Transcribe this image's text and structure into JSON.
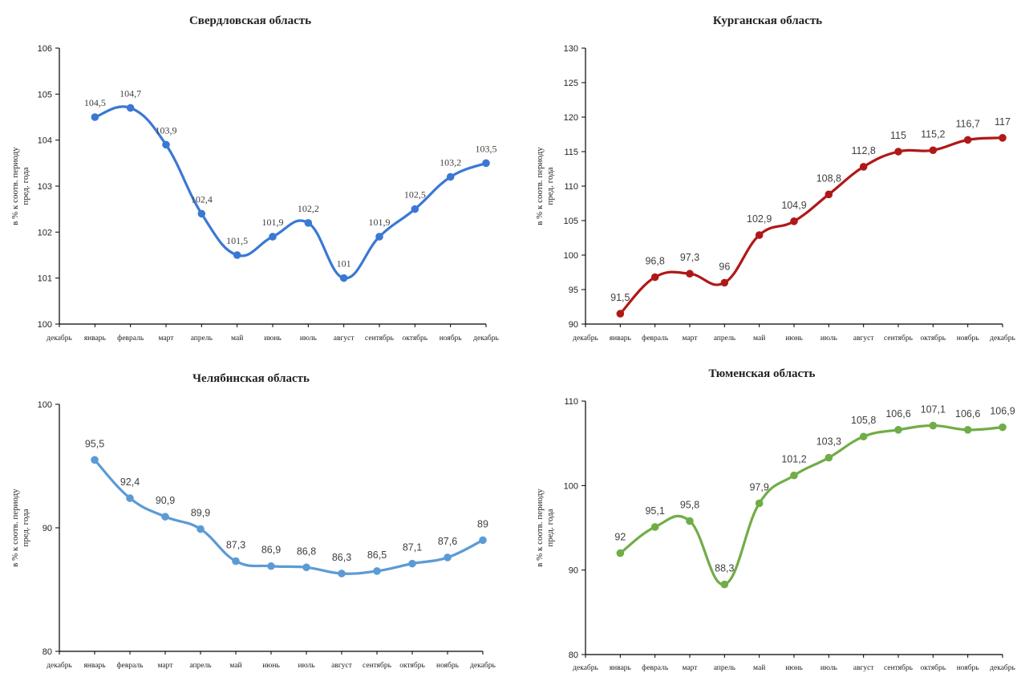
{
  "chart_data": [
    {
      "type": "line",
      "title": "Свердловская область",
      "ylabel": "в % к соотв. периоду\nпред. года",
      "categories": [
        "декабрь",
        "январь",
        "февраль",
        "март",
        "апрель",
        "май",
        "июнь",
        "июль",
        "август",
        "сентябрь",
        "октябрь",
        "ноябрь",
        "декабрь"
      ],
      "y_ticks": [
        "100",
        "101",
        "102",
        "103",
        "104",
        "105",
        "106"
      ],
      "ylim": [
        100,
        106
      ],
      "series": [
        {
          "values": [
            null,
            104.5,
            104.7,
            103.9,
            102.4,
            101.5,
            101.9,
            102.2,
            101.0,
            101.9,
            102.5,
            103.2,
            103.5
          ],
          "labels": [
            "",
            "104,5",
            "104,7",
            "103,9",
            "102,4",
            "101,5",
            "101,9",
            "102,2",
            "101",
            "101,9",
            "102,5",
            "103,2",
            "103,5"
          ],
          "color": "#3a78d4"
        }
      ]
    },
    {
      "type": "line",
      "title": "Курганская область",
      "ylabel": "в % к соотв. периоду\nпред. года",
      "categories": [
        "декабрь",
        "январь",
        "февраль",
        "март",
        "апрель",
        "май",
        "июнь",
        "июль",
        "август",
        "сентябрь",
        "октябрь",
        "ноябрь",
        "декабрь"
      ],
      "y_ticks": [
        "90",
        "95",
        "100",
        "105",
        "110",
        "115",
        "120",
        "125",
        "130"
      ],
      "ylim": [
        90,
        130
      ],
      "series": [
        {
          "values": [
            null,
            91.5,
            96.8,
            97.3,
            96.0,
            102.9,
            104.9,
            108.8,
            112.8,
            115.0,
            115.2,
            116.7,
            117.0
          ],
          "labels": [
            "",
            "91,5",
            "96,8",
            "97,3",
            "96",
            "102,9",
            "104,9",
            "108,8",
            "112,8",
            "115",
            "115,2",
            "116,7",
            "117"
          ],
          "color": "#b01818"
        }
      ]
    },
    {
      "type": "line",
      "title": "Челябинская область",
      "ylabel": "в % к соотв. периоду\nпред. года",
      "categories": [
        "декабрь",
        "январь",
        "февраль",
        "март",
        "апрель",
        "май",
        "июнь",
        "июль",
        "август",
        "сентябрь",
        "октябрь",
        "ноябрь",
        "декабрь"
      ],
      "y_ticks": [
        "80",
        "90",
        "100"
      ],
      "ylim": [
        80,
        100
      ],
      "series": [
        {
          "values": [
            null,
            95.5,
            92.4,
            90.9,
            89.9,
            87.3,
            86.9,
            86.8,
            86.3,
            86.5,
            87.1,
            87.6,
            89.0
          ],
          "labels": [
            "",
            "95,5",
            "92,4",
            "90,9",
            "89,9",
            "87,3",
            "86,9",
            "86,8",
            "86,3",
            "86,5",
            "87,1",
            "87,6",
            "89"
          ],
          "color": "#5b9bd5"
        }
      ]
    },
    {
      "type": "line",
      "title": "Тюменская область",
      "ylabel": "в % к соотв. периоду\nпред. года",
      "categories": [
        "декабрь",
        "январь",
        "февраль",
        "март",
        "апрель",
        "май",
        "июнь",
        "июль",
        "август",
        "сентябрь",
        "октябрь",
        "ноябрь",
        "декабрь"
      ],
      "y_ticks": [
        "80",
        "90",
        "100",
        "110"
      ],
      "ylim": [
        80,
        110
      ],
      "series": [
        {
          "values": [
            null,
            92.0,
            95.1,
            95.8,
            88.3,
            97.9,
            101.2,
            103.3,
            105.8,
            106.6,
            107.1,
            106.6,
            106.9
          ],
          "labels": [
            "",
            "92",
            "95,1",
            "95,8",
            "88,3",
            "97,9",
            "101,2",
            "103,3",
            "105,8",
            "106,6",
            "107,1",
            "106,6",
            "106,9"
          ],
          "color": "#70ad47"
        }
      ]
    }
  ]
}
